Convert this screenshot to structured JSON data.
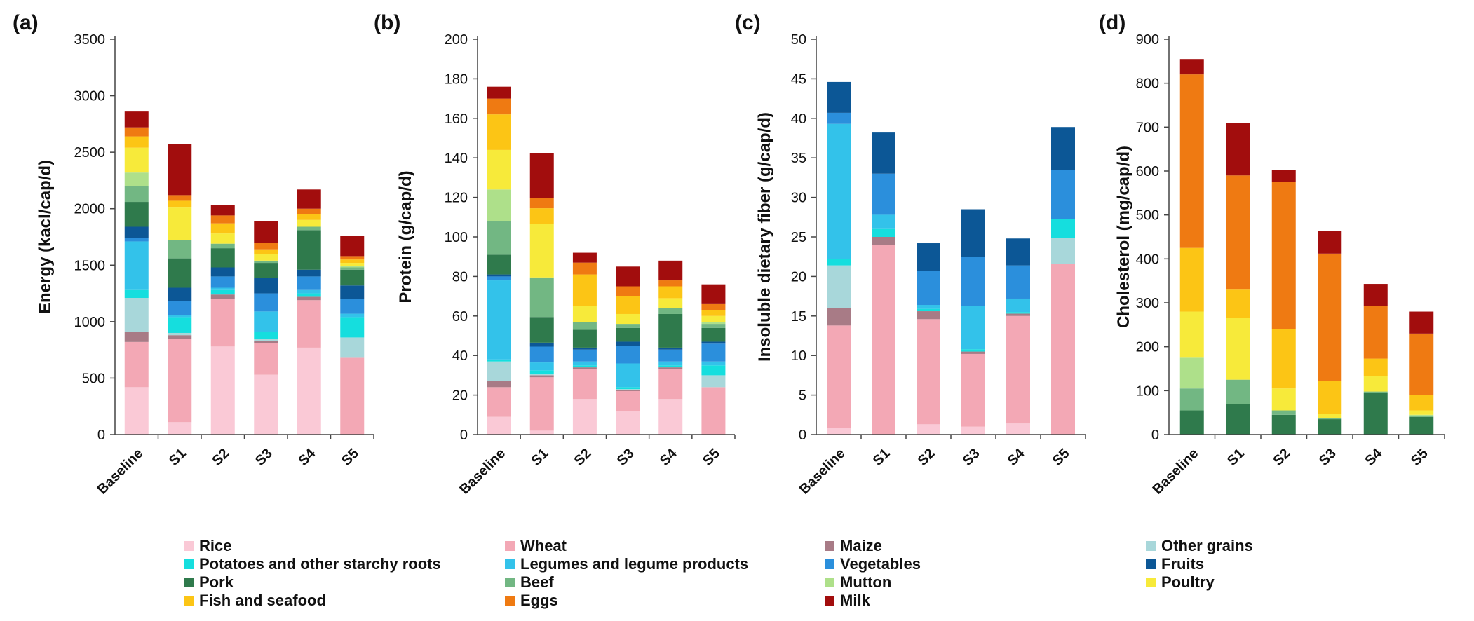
{
  "colors": {
    "Rice": "#fac9d6",
    "Wheat": "#f3a8b5",
    "Maize": "#a87b86",
    "Other grains": "#a8d7da",
    "Potatoes and other starchy roots": "#15dede",
    "Legumes and legume products": "#33c2ea",
    "Vegetables": "#2b8fdc",
    "Fruits": "#0c5796",
    "Pork": "#2f7a4c",
    "Beef": "#72b783",
    "Mutton": "#aee08a",
    "Poultry": "#f7ea3a",
    "Fish and seafood": "#fcc515",
    "Eggs": "#ef7a12",
    "Milk": "#a20d0d"
  },
  "legend": {
    "items": [
      "Rice",
      "Wheat",
      "Maize",
      "Other grains",
      "Potatoes and other starchy roots",
      "Legumes and legume products",
      "Vegetables",
      "Fruits",
      "Pork",
      "Beef",
      "Mutton",
      "Poultry",
      "Fish and seafood",
      "Eggs",
      "Milk"
    ]
  },
  "chart_data": [
    {
      "type": "bar",
      "stacked": true,
      "panel_label": "(a)",
      "ylabel": "Energy (kacl/cap/d)",
      "ylim": [
        0,
        3500
      ],
      "ystep": 500,
      "categories": [
        "Baseline",
        "S1",
        "S2",
        "S3",
        "S4",
        "S5"
      ],
      "series": [
        {
          "name": "Rice",
          "values": [
            420,
            110,
            780,
            530,
            770,
            0
          ]
        },
        {
          "name": "Wheat",
          "values": [
            400,
            740,
            420,
            280,
            420,
            680
          ]
        },
        {
          "name": "Maize",
          "values": [
            90,
            30,
            40,
            20,
            30,
            0
          ]
        },
        {
          "name": "Other grains",
          "values": [
            300,
            20,
            0,
            20,
            0,
            180
          ]
        },
        {
          "name": "Potatoes and other starchy roots",
          "values": [
            70,
            140,
            40,
            60,
            30,
            180
          ]
        },
        {
          "name": "Legumes and legume products",
          "values": [
            430,
            20,
            20,
            180,
            30,
            30
          ]
        },
        {
          "name": "Vegetables",
          "values": [
            30,
            120,
            100,
            160,
            120,
            130
          ]
        },
        {
          "name": "Fruits",
          "values": [
            100,
            120,
            80,
            140,
            60,
            120
          ]
        },
        {
          "name": "Pork",
          "values": [
            220,
            260,
            170,
            130,
            350,
            140
          ]
        },
        {
          "name": "Beef",
          "values": [
            140,
            160,
            40,
            20,
            30,
            20
          ]
        },
        {
          "name": "Mutton",
          "values": [
            120,
            0,
            0,
            0,
            0,
            10
          ]
        },
        {
          "name": "Poultry",
          "values": [
            220,
            290,
            90,
            60,
            60,
            30
          ]
        },
        {
          "name": "Fish and seafood",
          "values": [
            100,
            60,
            90,
            40,
            50,
            30
          ]
        },
        {
          "name": "Eggs",
          "values": [
            80,
            50,
            70,
            60,
            50,
            30
          ]
        },
        {
          "name": "Milk",
          "values": [
            140,
            450,
            90,
            190,
            170,
            180
          ]
        }
      ]
    },
    {
      "type": "bar",
      "stacked": true,
      "panel_label": "(b)",
      "ylabel": "Protein (g/cap/d)",
      "ylim": [
        0,
        200
      ],
      "ystep": 20,
      "categories": [
        "Baseline",
        "S1",
        "S2",
        "S3",
        "S4",
        "S5"
      ],
      "series": [
        {
          "name": "Rice",
          "values": [
            9,
            2,
            18,
            12,
            18,
            0
          ]
        },
        {
          "name": "Wheat",
          "values": [
            15,
            27,
            15,
            10,
            15,
            24
          ]
        },
        {
          "name": "Maize",
          "values": [
            3,
            1,
            1,
            0.5,
            1,
            0
          ]
        },
        {
          "name": "Other grains",
          "values": [
            10,
            0.5,
            0,
            0.5,
            0,
            6
          ]
        },
        {
          "name": "Potatoes and other starchy roots",
          "values": [
            1,
            2,
            1,
            1,
            1,
            5
          ]
        },
        {
          "name": "Legumes and legume products",
          "values": [
            40,
            4,
            2,
            12,
            2,
            2
          ]
        },
        {
          "name": "Vegetables",
          "values": [
            2,
            8,
            6,
            9,
            6,
            9
          ]
        },
        {
          "name": "Fruits",
          "values": [
            1,
            2,
            1,
            2,
            1,
            1
          ]
        },
        {
          "name": "Pork",
          "values": [
            10,
            13,
            9,
            7,
            17,
            7
          ]
        },
        {
          "name": "Beef",
          "values": [
            17,
            20,
            4,
            2,
            3,
            2
          ]
        },
        {
          "name": "Mutton",
          "values": [
            16,
            0,
            0,
            0,
            0,
            1
          ]
        },
        {
          "name": "Poultry",
          "values": [
            20,
            27,
            8,
            5,
            5,
            3
          ]
        },
        {
          "name": "Fish and seafood",
          "values": [
            18,
            8,
            16,
            9,
            6,
            3
          ]
        },
        {
          "name": "Eggs",
          "values": [
            8,
            5,
            6,
            5,
            3,
            3
          ]
        },
        {
          "name": "Milk",
          "values": [
            6,
            23,
            5,
            10,
            10,
            10
          ]
        }
      ]
    },
    {
      "type": "bar",
      "stacked": true,
      "panel_label": "(c)",
      "ylabel": "Insoluble dietary fiber (g/cap/d)",
      "ylim": [
        0,
        50
      ],
      "ystep": 5,
      "categories": [
        "Baseline",
        "S1",
        "S2",
        "S3",
        "S4",
        "S5"
      ],
      "series": [
        {
          "name": "Rice",
          "values": [
            0.8,
            0,
            1.3,
            1,
            1.4,
            0
          ]
        },
        {
          "name": "Wheat",
          "values": [
            13,
            24,
            13.3,
            9.2,
            13.6,
            21.6
          ]
        },
        {
          "name": "Maize",
          "values": [
            2.2,
            1,
            1,
            0.3,
            0.3,
            0
          ]
        },
        {
          "name": "Other grains",
          "values": [
            5.4,
            0,
            0,
            0,
            0,
            3.3
          ]
        },
        {
          "name": "Potatoes and other starchy roots",
          "values": [
            0.8,
            1,
            0.3,
            0.3,
            0.2,
            2.4
          ]
        },
        {
          "name": "Legumes and legume products",
          "values": [
            17.1,
            1.8,
            0.5,
            5.5,
            1.7,
            0
          ]
        },
        {
          "name": "Vegetables",
          "values": [
            1.4,
            5.2,
            4.3,
            6.2,
            4.2,
            6.2
          ]
        },
        {
          "name": "Fruits",
          "values": [
            3.9,
            5.2,
            3.5,
            6,
            3.4,
            5.4
          ]
        }
      ]
    },
    {
      "type": "bar",
      "stacked": true,
      "panel_label": "(d)",
      "ylabel": "Cholesterol (mg/cap/d)",
      "ylim": [
        0,
        900
      ],
      "ystep": 100,
      "categories": [
        "Baseline",
        "S1",
        "S2",
        "S3",
        "S4",
        "S5"
      ],
      "series": [
        {
          "name": "Pork",
          "values": [
            55,
            70,
            45,
            35,
            95,
            40
          ]
        },
        {
          "name": "Beef",
          "values": [
            50,
            55,
            10,
            2,
            3,
            3
          ]
        },
        {
          "name": "Mutton",
          "values": [
            70,
            0,
            0,
            0,
            0,
            2
          ]
        },
        {
          "name": "Poultry",
          "values": [
            105,
            140,
            50,
            10,
            35,
            10
          ]
        },
        {
          "name": "Fish and seafood",
          "values": [
            145,
            65,
            135,
            75,
            40,
            35
          ]
        },
        {
          "name": "Eggs",
          "values": [
            395,
            260,
            335,
            290,
            120,
            140
          ]
        },
        {
          "name": "Milk",
          "values": [
            35,
            120,
            27,
            52,
            50,
            50
          ]
        }
      ]
    }
  ]
}
